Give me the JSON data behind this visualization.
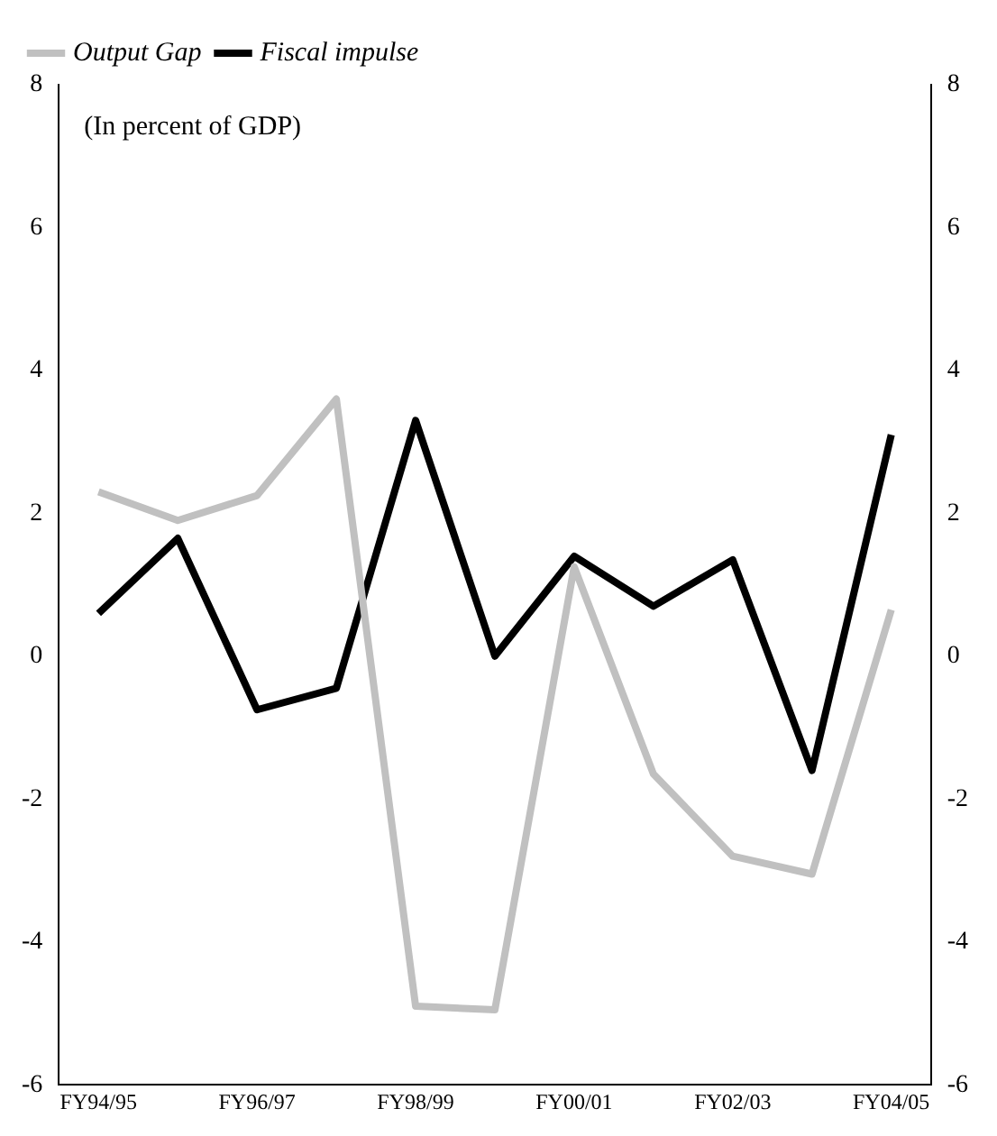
{
  "chart_data": {
    "type": "line",
    "categories": [
      "FY94/95",
      null,
      "FY96/97",
      null,
      "FY98/99",
      null,
      "FY00/01",
      null,
      "FY02/03",
      null,
      "FY04/05"
    ],
    "series": [
      {
        "name": "Output Gap",
        "color": "#c0c0c0",
        "values": [
          2.3,
          1.9,
          2.25,
          3.6,
          -4.9,
          -4.95,
          1.25,
          -1.65,
          -2.8,
          -3.05,
          0.65
        ]
      },
      {
        "name": "Fiscal impulse",
        "color": "#000000",
        "values": [
          0.6,
          1.65,
          -0.75,
          -0.45,
          3.3,
          0.0,
          1.4,
          0.7,
          1.35,
          -1.6,
          3.1
        ]
      }
    ],
    "ylim": [
      -6,
      8
    ],
    "yticks": [
      -6,
      -4,
      -2,
      0,
      2,
      4,
      6,
      8
    ],
    "y2lim": [
      -6,
      8
    ],
    "y2ticks": [
      -6,
      -4,
      -2,
      0,
      2,
      4,
      6,
      8
    ],
    "annotations": [
      "(In percent of GDP)"
    ],
    "legend": "top left",
    "grid": false,
    "marker": "none",
    "line_style": "solid"
  }
}
